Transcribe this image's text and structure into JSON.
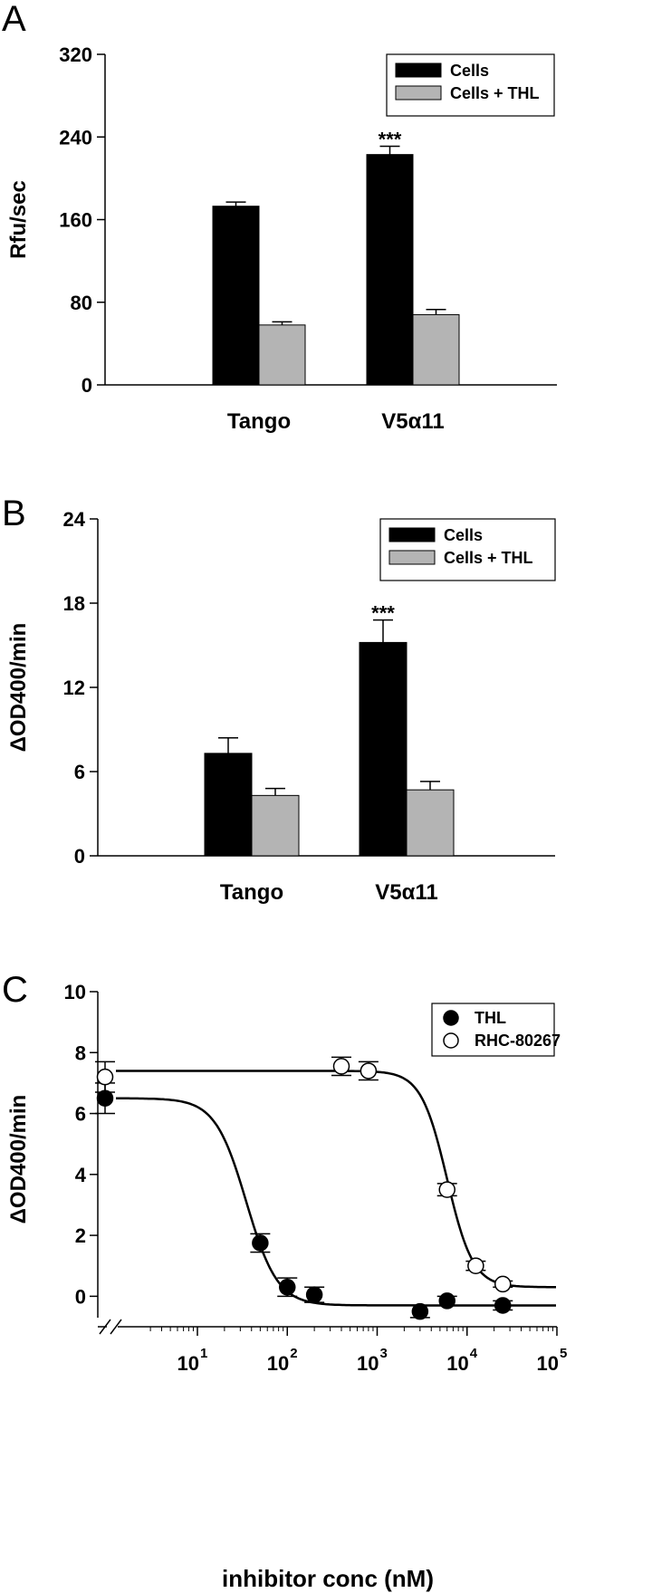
{
  "chart_data": [
    {
      "panel": "A",
      "type": "bar",
      "categories": [
        "Tango",
        "V5α11"
      ],
      "series": [
        {
          "name": "Cells",
          "values": [
            173,
            223
          ],
          "errors": [
            4,
            8
          ]
        },
        {
          "name": "Cells + THL",
          "values": [
            58,
            68
          ],
          "errors": [
            3,
            5
          ]
        }
      ],
      "ylabel": "Rfu/sec",
      "ylim": [
        0,
        320
      ],
      "yticks": [
        0,
        80,
        160,
        240,
        320
      ],
      "annotations": [
        {
          "category": "V5α11",
          "series": "Cells",
          "text": "***"
        }
      ],
      "legend_position": "top-right",
      "colors": {
        "Cells": "#000000",
        "Cells + THL": "#b4b4b4"
      }
    },
    {
      "panel": "B",
      "type": "bar",
      "categories": [
        "Tango",
        "V5α11"
      ],
      "series": [
        {
          "name": "Cells",
          "values": [
            7.3,
            15.2
          ],
          "errors": [
            1.1,
            1.6
          ]
        },
        {
          "name": "Cells + THL",
          "values": [
            4.3,
            4.7
          ],
          "errors": [
            0.5,
            0.6
          ]
        }
      ],
      "ylabel": "ΔOD400/min",
      "ylim": [
        0,
        24
      ],
      "yticks": [
        0,
        6,
        12,
        18,
        24
      ],
      "annotations": [
        {
          "category": "V5α11",
          "series": "Cells",
          "text": "***"
        }
      ],
      "legend_position": "top-right",
      "colors": {
        "Cells": "#000000",
        "Cells + THL": "#b4b4b4"
      }
    },
    {
      "panel": "C",
      "type": "scatter",
      "xscale": "log",
      "xlabel": "inhibitor conc (nM)",
      "ylabel": "ΔOD400/min",
      "xlim": [
        1,
        100000
      ],
      "ylim": [
        -1,
        10
      ],
      "yticks": [
        0,
        2,
        4,
        6,
        8,
        10
      ],
      "xticks": [
        {
          "value": 10,
          "base": "10",
          "exp": "1"
        },
        {
          "value": 100,
          "base": "10",
          "exp": "2"
        },
        {
          "value": 1000,
          "base": "10",
          "exp": "3"
        },
        {
          "value": 10000,
          "base": "10",
          "exp": "4"
        },
        {
          "value": 100000,
          "base": "10",
          "exp": "5"
        }
      ],
      "axis_break": true,
      "legend_position": "top-right",
      "series": [
        {
          "name": "THL",
          "marker": "filled-circle",
          "zero_dose": {
            "y": 6.5,
            "err": 0.5
          },
          "points": [
            {
              "x": 50,
              "y": 1.75,
              "err": 0.3
            },
            {
              "x": 100,
              "y": 0.3,
              "err": 0.3
            },
            {
              "x": 200,
              "y": 0.05,
              "err": 0.25
            },
            {
              "x": 3000,
              "y": -0.5,
              "err": 0.2
            },
            {
              "x": 6000,
              "y": -0.15,
              "err": 0.15
            },
            {
              "x": 25000,
              "y": -0.3,
              "err": 0.15
            }
          ],
          "fit": {
            "top": 6.5,
            "bottom": -0.3,
            "ic50": 35,
            "hill": 2.5
          }
        },
        {
          "name": "RHC-80267",
          "marker": "open-circle",
          "zero_dose": {
            "y": 7.2,
            "err": 0.5
          },
          "points": [
            {
              "x": 400,
              "y": 7.55,
              "err": 0.3
            },
            {
              "x": 800,
              "y": 7.4,
              "err": 0.3
            },
            {
              "x": 6000,
              "y": 3.5,
              "err": 0.2
            },
            {
              "x": 12500,
              "y": 1.0,
              "err": 0.15
            },
            {
              "x": 25000,
              "y": 0.4,
              "err": 0.1
            }
          ],
          "fit": {
            "top": 7.4,
            "bottom": 0.3,
            "ic50": 6000,
            "hill": 3.0
          }
        }
      ]
    }
  ]
}
